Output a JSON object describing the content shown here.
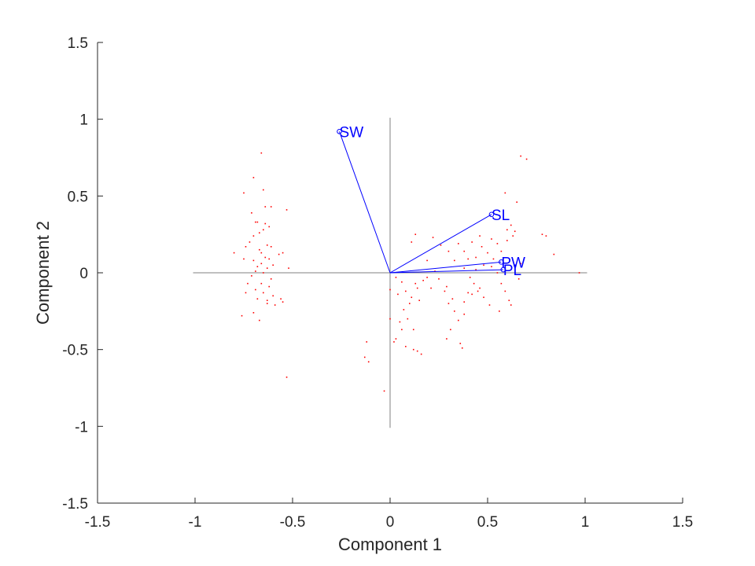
{
  "chart_data": {
    "type": "scatter",
    "title": "",
    "xlabel": "Component 1",
    "ylabel": "Component 2",
    "xlim": [
      -1.5,
      1.5
    ],
    "ylim": [
      -1.5,
      1.5
    ],
    "xticks": [
      "-1.5",
      "-1",
      "-0.5",
      "0",
      "0.5",
      "1",
      "1.5"
    ],
    "yticks": [
      "-1.5",
      "-1",
      "-0.5",
      "0",
      "0.5",
      "1",
      "1.5"
    ],
    "xtick_values": [
      -1.5,
      -1,
      -0.5,
      0,
      0.5,
      1,
      1.5
    ],
    "ytick_values": [
      -1.5,
      -1,
      -0.5,
      0,
      0.5,
      1,
      1.5
    ],
    "grid": false,
    "reference_lines": {
      "horizontal": [
        -1.01,
        1.01
      ],
      "vertical": [
        -1.01,
        1.01
      ]
    },
    "vectors": [
      {
        "label": "SW",
        "x": -0.26,
        "y": 0.92
      },
      {
        "label": "SL",
        "x": 0.52,
        "y": 0.38
      },
      {
        "label": "PW",
        "x": 0.57,
        "y": 0.07
      },
      {
        "label": "PL",
        "x": 0.58,
        "y": 0.02
      }
    ],
    "vector_color": "#0000ff",
    "point_color": "#ff0000",
    "points": [
      [
        -0.66,
        0.78
      ],
      [
        -0.7,
        0.62
      ],
      [
        -0.75,
        0.52
      ],
      [
        -0.65,
        0.54
      ],
      [
        -0.64,
        0.43
      ],
      [
        -0.61,
        0.43
      ],
      [
        -0.53,
        0.41
      ],
      [
        -0.71,
        0.39
      ],
      [
        -0.68,
        0.33
      ],
      [
        -0.69,
        0.33
      ],
      [
        -0.64,
        0.32
      ],
      [
        -0.62,
        0.3
      ],
      [
        -0.65,
        0.28
      ],
      [
        -0.67,
        0.26
      ],
      [
        -0.7,
        0.24
      ],
      [
        -0.72,
        0.2
      ],
      [
        -0.63,
        0.18
      ],
      [
        -0.74,
        0.17
      ],
      [
        -0.61,
        0.17
      ],
      [
        -0.67,
        0.15
      ],
      [
        -0.66,
        0.13
      ],
      [
        -0.55,
        0.13
      ],
      [
        -0.8,
        0.13
      ],
      [
        -0.57,
        0.12
      ],
      [
        -0.64,
        0.1
      ],
      [
        -0.62,
        0.09
      ],
      [
        -0.75,
        0.09
      ],
      [
        -0.7,
        0.08
      ],
      [
        -0.66,
        0.06
      ],
      [
        -0.68,
        0.04
      ],
      [
        -0.6,
        0.05
      ],
      [
        -0.63,
        0.03
      ],
      [
        -0.52,
        0.03
      ],
      [
        -0.69,
        0.01
      ],
      [
        -0.65,
        0.0
      ],
      [
        -0.71,
        -0.02
      ],
      [
        -0.61,
        -0.04
      ],
      [
        -0.66,
        -0.07
      ],
      [
        -0.73,
        -0.07
      ],
      [
        -0.62,
        -0.09
      ],
      [
        -0.69,
        -0.11
      ],
      [
        -0.65,
        -0.13
      ],
      [
        -0.74,
        -0.13
      ],
      [
        -0.6,
        -0.15
      ],
      [
        -0.63,
        -0.18
      ],
      [
        -0.56,
        -0.17
      ],
      [
        -0.68,
        -0.17
      ],
      [
        -0.55,
        -0.19
      ],
      [
        -0.63,
        -0.2
      ],
      [
        -0.59,
        -0.21
      ],
      [
        -0.7,
        -0.26
      ],
      [
        -0.76,
        -0.28
      ],
      [
        -0.67,
        -0.31
      ],
      [
        -0.53,
        -0.68
      ],
      [
        -0.03,
        -0.77
      ],
      [
        -0.11,
        -0.58
      ],
      [
        -0.13,
        -0.55
      ],
      [
        -0.12,
        -0.45
      ],
      [
        0.02,
        -0.45
      ],
      [
        0.0,
        -0.3
      ],
      [
        0.03,
        -0.43
      ],
      [
        0.08,
        -0.48
      ],
      [
        0.06,
        -0.37
      ],
      [
        0.12,
        -0.5
      ],
      [
        0.14,
        -0.51
      ],
      [
        0.16,
        -0.53
      ],
      [
        0.12,
        -0.37
      ],
      [
        0.05,
        -0.32
      ],
      [
        0.09,
        -0.3
      ],
      [
        0.07,
        -0.24
      ],
      [
        0.1,
        -0.2
      ],
      [
        0.04,
        -0.14
      ],
      [
        0.08,
        -0.12
      ],
      [
        0.11,
        -0.16
      ],
      [
        0.15,
        -0.18
      ],
      [
        0.0,
        -0.11
      ],
      [
        0.06,
        -0.06
      ],
      [
        0.03,
        -0.03
      ],
      [
        0.13,
        -0.07
      ],
      [
        0.17,
        -0.05
      ],
      [
        0.19,
        -0.03
      ],
      [
        0.14,
        -0.1
      ],
      [
        0.21,
        -0.1
      ],
      [
        0.23,
        0.01
      ],
      [
        0.25,
        -0.04
      ],
      [
        0.28,
        -0.12
      ],
      [
        0.29,
        -0.09
      ],
      [
        0.32,
        -0.17
      ],
      [
        0.3,
        -0.2
      ],
      [
        0.33,
        -0.25
      ],
      [
        0.35,
        -0.31
      ],
      [
        0.38,
        -0.27
      ],
      [
        0.31,
        -0.37
      ],
      [
        0.29,
        -0.43
      ],
      [
        0.36,
        -0.46
      ],
      [
        0.37,
        -0.49
      ],
      [
        0.38,
        -0.19
      ],
      [
        0.4,
        -0.13
      ],
      [
        0.42,
        -0.14
      ],
      [
        0.45,
        -0.12
      ],
      [
        0.41,
        -0.03
      ],
      [
        0.44,
        0.02
      ],
      [
        0.48,
        0.05
      ],
      [
        0.52,
        0.04
      ],
      [
        0.55,
        0.0
      ],
      [
        0.57,
        -0.07
      ],
      [
        0.59,
        -0.12
      ],
      [
        0.61,
        -0.18
      ],
      [
        0.62,
        -0.21
      ],
      [
        0.56,
        -0.25
      ],
      [
        0.51,
        -0.21
      ],
      [
        0.48,
        -0.16
      ],
      [
        0.46,
        -0.1
      ],
      [
        0.43,
        -0.07
      ],
      [
        0.4,
        0.09
      ],
      [
        0.38,
        0.14
      ],
      [
        0.35,
        0.19
      ],
      [
        0.42,
        0.2
      ],
      [
        0.46,
        0.24
      ],
      [
        0.52,
        0.22
      ],
      [
        0.55,
        0.19
      ],
      [
        0.6,
        0.21
      ],
      [
        0.57,
        0.14
      ],
      [
        0.53,
        0.09
      ],
      [
        0.5,
        0.13
      ],
      [
        0.47,
        0.17
      ],
      [
        0.44,
        0.1
      ],
      [
        0.38,
        0.03
      ],
      [
        0.33,
        0.08
      ],
      [
        0.3,
        0.14
      ],
      [
        0.26,
        0.18
      ],
      [
        0.22,
        0.23
      ],
      [
        0.13,
        0.25
      ],
      [
        0.11,
        0.2
      ],
      [
        0.19,
        0.08
      ],
      [
        0.62,
        0.31
      ],
      [
        0.6,
        0.28
      ],
      [
        0.64,
        0.27
      ],
      [
        0.63,
        0.24
      ],
      [
        0.67,
        0.06
      ],
      [
        0.66,
        -0.04
      ],
      [
        0.65,
        0.46
      ],
      [
        0.59,
        0.52
      ],
      [
        0.67,
        0.76
      ],
      [
        0.7,
        0.74
      ],
      [
        0.78,
        0.25
      ],
      [
        0.8,
        0.24
      ],
      [
        0.84,
        0.12
      ],
      [
        0.97,
        0.0
      ]
    ]
  }
}
